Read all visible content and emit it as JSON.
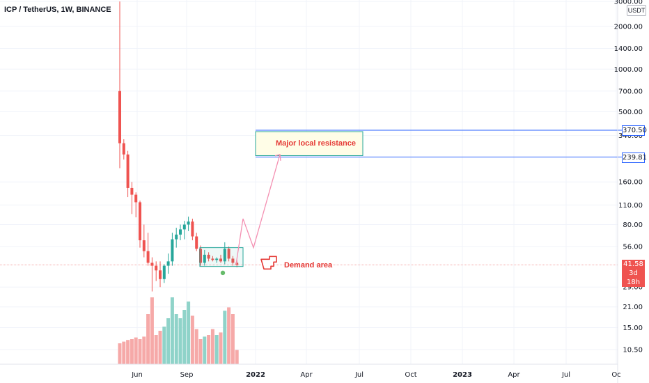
{
  "header": {
    "title": "ICP / TetherUS, 1W, BINANCE"
  },
  "scale_badge": "USDT",
  "y_axis": {
    "scale": "log",
    "labels": [
      "3000.00",
      "2000.00",
      "1400.00",
      "1000.00",
      "700.00",
      "500.00",
      "340.00",
      "160.00",
      "110.00",
      "80.00",
      "56.00",
      "29.00",
      "21.00",
      "15.00",
      "10.50"
    ]
  },
  "x_axis": {
    "labels": [
      {
        "text": "Jun",
        "year": false
      },
      {
        "text": "Sep",
        "year": false
      },
      {
        "text": "2022",
        "year": true
      },
      {
        "text": "Apr",
        "year": false
      },
      {
        "text": "Jul",
        "year": false
      },
      {
        "text": "Oct",
        "year": false
      },
      {
        "text": "2023",
        "year": true
      },
      {
        "text": "Apr",
        "year": false
      },
      {
        "text": "Jul",
        "year": false
      },
      {
        "text": "Oc",
        "year": false
      }
    ]
  },
  "price_tags": {
    "resistance_high": "370.50",
    "resistance_low": "239.81",
    "last_price": "41.58",
    "countdown": "3d 18h"
  },
  "annotations": {
    "resistance_label": "Major local resistance",
    "demand_label": "Demand area"
  },
  "colors": {
    "up": "#26a69a",
    "down": "#ef5350",
    "up_volume": "#8fd3c9",
    "down_volume": "#f6a9a8",
    "resistance_line": "#2962ff",
    "annotation": "#e53935",
    "arrow": "#f48fb1"
  },
  "chart_data": {
    "type": "candlestick",
    "title": "ICP / TetherUS, 1W, BINANCE",
    "y_scale": "log",
    "candles": [
      {
        "o": 700,
        "h": 3000,
        "l": 200,
        "c": 300
      },
      {
        "o": 300,
        "h": 320,
        "l": 230,
        "c": 250
      },
      {
        "o": 250,
        "h": 265,
        "l": 125,
        "c": 145
      },
      {
        "o": 145,
        "h": 160,
        "l": 95,
        "c": 130
      },
      {
        "o": 130,
        "h": 135,
        "l": 90,
        "c": 115
      },
      {
        "o": 115,
        "h": 118,
        "l": 55,
        "c": 62
      },
      {
        "o": 62,
        "h": 80,
        "l": 47,
        "c": 52
      },
      {
        "o": 52,
        "h": 70,
        "l": 41,
        "c": 43
      },
      {
        "o": 43,
        "h": 47,
        "l": 27,
        "c": 41
      },
      {
        "o": 41,
        "h": 44,
        "l": 32,
        "c": 38
      },
      {
        "o": 38,
        "h": 44,
        "l": 29,
        "c": 33
      },
      {
        "o": 33,
        "h": 42,
        "l": 31,
        "c": 41
      },
      {
        "o": 41,
        "h": 50,
        "l": 36,
        "c": 44
      },
      {
        "o": 44,
        "h": 70,
        "l": 41,
        "c": 63
      },
      {
        "o": 63,
        "h": 76,
        "l": 55,
        "c": 68
      },
      {
        "o": 68,
        "h": 80,
        "l": 62,
        "c": 74
      },
      {
        "o": 74,
        "h": 85,
        "l": 63,
        "c": 80
      },
      {
        "o": 80,
        "h": 91,
        "l": 72,
        "c": 84
      },
      {
        "o": 84,
        "h": 88,
        "l": 62,
        "c": 66
      },
      {
        "o": 66,
        "h": 70,
        "l": 52,
        "c": 54
      },
      {
        "o": 54,
        "h": 57,
        "l": 41,
        "c": 43
      },
      {
        "o": 43,
        "h": 53,
        "l": 41,
        "c": 49
      },
      {
        "o": 49,
        "h": 51,
        "l": 44,
        "c": 46
      },
      {
        "o": 46,
        "h": 48,
        "l": 44,
        "c": 45
      },
      {
        "o": 45,
        "h": 47,
        "l": 43,
        "c": 46
      },
      {
        "o": 46,
        "h": 49,
        "l": 43,
        "c": 44
      },
      {
        "o": 44,
        "h": 60,
        "l": 42,
        "c": 54
      },
      {
        "o": 54,
        "h": 56,
        "l": 44,
        "c": 46
      },
      {
        "o": 46,
        "h": 48,
        "l": 41,
        "c": 43
      },
      {
        "o": 43,
        "h": 45,
        "l": 40,
        "c": 41.58
      }
    ],
    "volume_relative": [
      0.25,
      0.27,
      0.29,
      0.3,
      0.32,
      0.3,
      0.33,
      0.6,
      0.8,
      0.35,
      0.4,
      0.45,
      0.55,
      0.8,
      0.6,
      0.55,
      0.65,
      0.75,
      0.58,
      0.42,
      0.3,
      0.33,
      0.35,
      0.42,
      0.35,
      0.38,
      0.64,
      0.68,
      0.6,
      0.17
    ],
    "levels": {
      "resistance_high": 370.5,
      "resistance_low": 239.81,
      "last_price": 41.58
    },
    "annotations": [
      "Major local resistance",
      "Demand area"
    ]
  }
}
